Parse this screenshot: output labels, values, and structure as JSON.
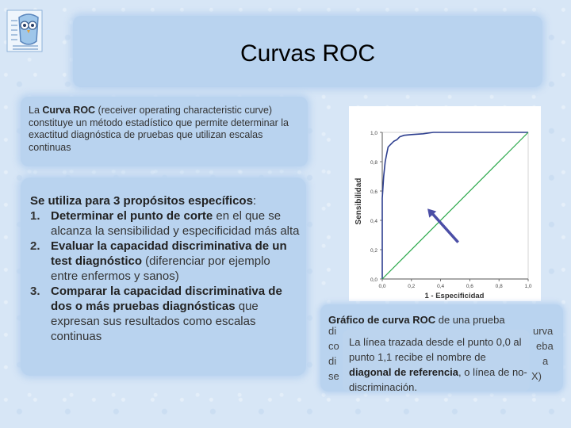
{
  "title": "Curvas ROC",
  "intro": {
    "pre": "La ",
    "bold": "Curva ROC",
    "post": " (receiver operating characteristic curve) constituye un método estadístico que permite determinar la exactitud diagnóstica de pruebas que utilizan escalas continuas"
  },
  "uses": {
    "lead_bold": "Se utiliza para 3 propósitos específicos",
    "lead_rest": ":",
    "items": [
      {
        "num": "1.",
        "bold": "Determinar el punto de corte",
        "rest": " en el que se alcanza la sensibilidad y especificidad más alta"
      },
      {
        "num": "2.",
        "bold": "Evaluar la capacidad discriminativa de un test diagnóstico",
        "rest": " (diferenciar por ejemplo entre enfermos y sanos)"
      },
      {
        "num": "3.",
        "bold": "Comparar la capacidad discriminativa de dos o más pruebas diagnósticas",
        "rest": " que expresan sus resultados como escalas continuas"
      }
    ]
  },
  "chart": {
    "ylabel": "Sensibilidad",
    "xlabel": "1 - Especificidad",
    "y_ticks": [
      "0,0",
      "0,2",
      "0,4",
      "0,6",
      "0,8",
      "1,0"
    ],
    "x_ticks": [
      "0,0",
      "0,2",
      "0,4",
      "0,6",
      "0,8",
      "1,0"
    ]
  },
  "chart_data": {
    "type": "line",
    "xlabel": "1 - Especificidad",
    "ylabel": "Sensibilidad",
    "xlim": [
      0,
      1
    ],
    "ylim": [
      0,
      1
    ],
    "series": [
      {
        "x": [
          0,
          0.0,
          0.01,
          0.02,
          0.03,
          0.04,
          0.06,
          0.08,
          0.1,
          0.12,
          0.15,
          0.2,
          0.28,
          0.35,
          0.5,
          0.7,
          0.9,
          1.0
        ],
        "y": [
          0,
          0.55,
          0.7,
          0.8,
          0.85,
          0.9,
          0.92,
          0.94,
          0.95,
          0.97,
          0.98,
          0.985,
          0.99,
          1.0,
          1.0,
          1.0,
          1.0,
          1.0
        ],
        "color": "#2e3f8f"
      },
      {
        "x": [
          0,
          1
        ],
        "y": [
          0,
          1
        ],
        "color": "#2aa84a"
      }
    ],
    "arrow_color": "#4b4ea6"
  },
  "caption": {
    "bold": "Gráfico de curva ROC",
    "rest": " de una prueba",
    "frag_left_1": "di",
    "frag_left_2": "co",
    "frag_left_3": "di",
    "frag_left_4": "se",
    "frag_right_1": "urva",
    "frag_right_2": "eba",
    "frag_right_3": "a",
    "frag_right_4": "X)"
  },
  "popup": {
    "pre": "La línea trazada desde el punto 0,0 al punto 1,1 recibe el nombre de ",
    "bold": "diagonal de referencia",
    "post": ", o línea de no-discriminación."
  }
}
